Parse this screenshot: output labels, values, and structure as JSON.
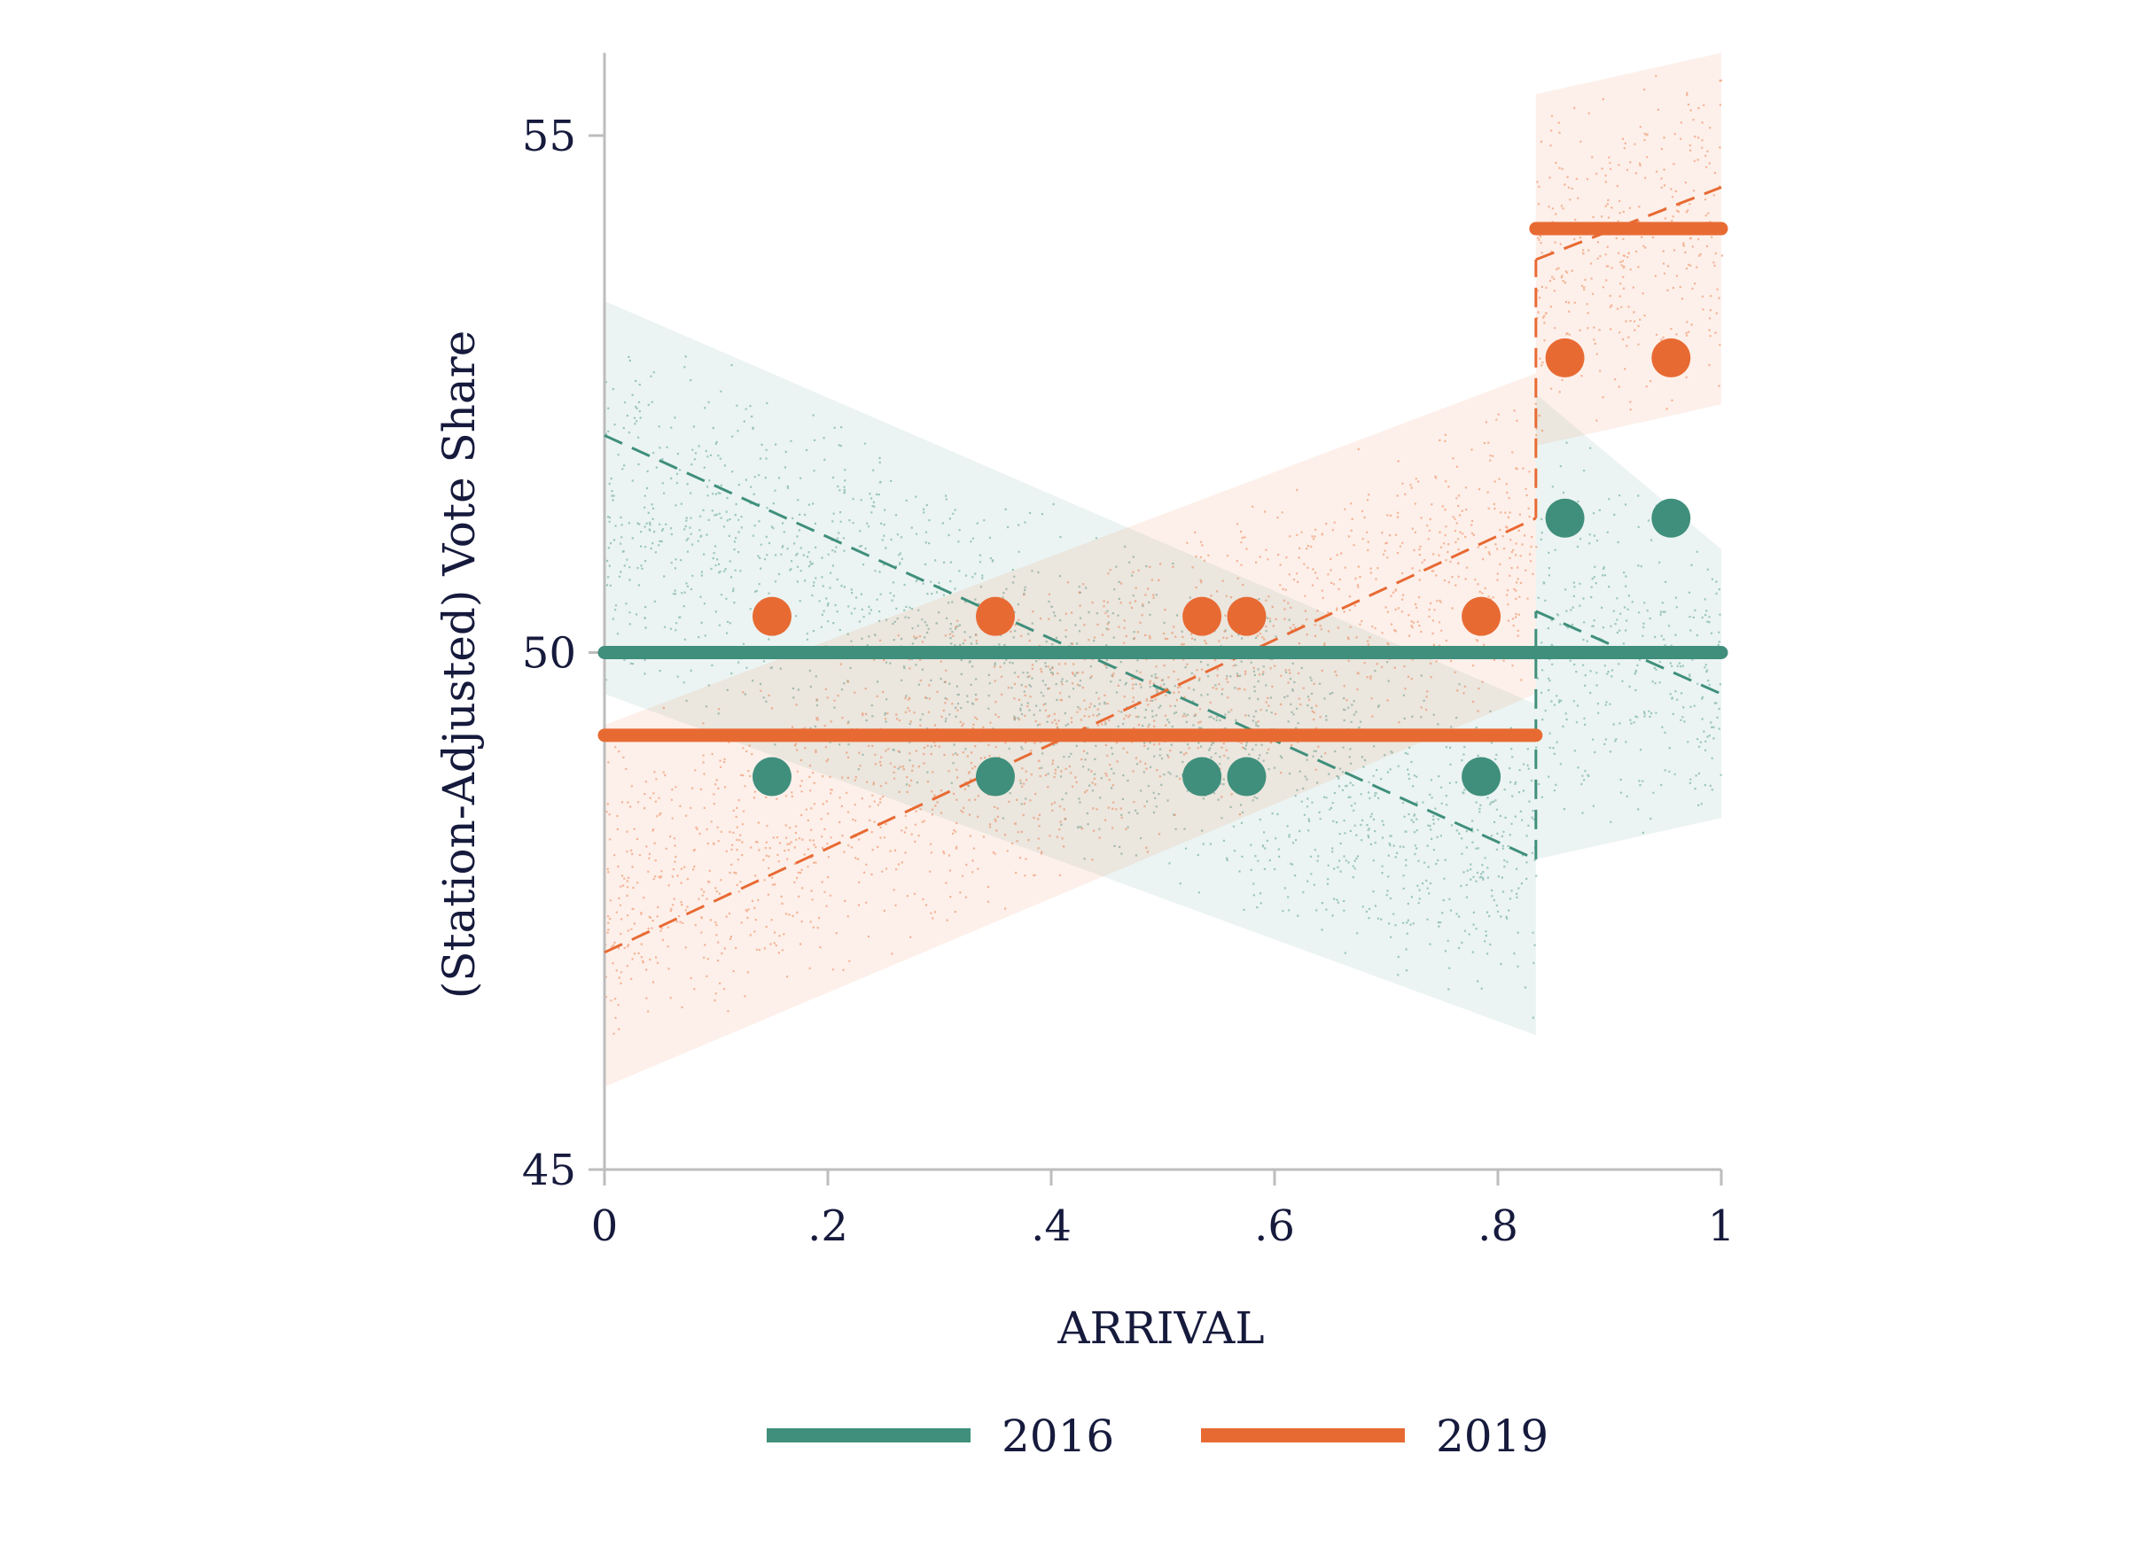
{
  "chart_data": {
    "type": "scatter",
    "xlabel": "ARRIVAL",
    "ylabel": "(Station-Adjusted) Vote Share",
    "xlim": [
      0,
      1
    ],
    "ylim": [
      45,
      55.8
    ],
    "x_ticks": [
      0,
      0.2,
      0.4,
      0.6,
      0.8,
      1
    ],
    "x_tick_labels": [
      "0",
      ".2",
      ".4",
      ".6",
      ".8",
      "1"
    ],
    "y_ticks": [
      45,
      50,
      55
    ],
    "y_tick_labels": [
      "45",
      "50",
      "55"
    ],
    "grid": false,
    "legend_position": "bottom",
    "colors": {
      "2016": "#3f8f7c",
      "2019": "#e86a33"
    },
    "series": [
      {
        "name": "2016",
        "color": "#3f8f7c",
        "mean_segments": [
          {
            "x0": 0,
            "x1": 1,
            "y": 50.0
          }
        ],
        "fit_segments": [
          {
            "x0": 0,
            "y0": 52.1,
            "x1": 0.834,
            "y1": 48.0
          },
          {
            "x0": 0.834,
            "y0": 50.4,
            "x1": 1,
            "y1": 49.6
          }
        ],
        "bin_points": [
          {
            "x": 0.15,
            "y": 48.8
          },
          {
            "x": 0.35,
            "y": 48.8
          },
          {
            "x": 0.535,
            "y": 48.8
          },
          {
            "x": 0.575,
            "y": 48.8
          },
          {
            "x": 0.785,
            "y": 48.8
          },
          {
            "x": 0.86,
            "y": 51.3
          },
          {
            "x": 0.955,
            "y": 51.3
          }
        ],
        "band_segments": [
          {
            "x0": 0,
            "x1": 0.834,
            "lo0": 49.6,
            "hi0": 53.4,
            "lo1": 46.3,
            "hi1": 49.5
          },
          {
            "x0": 0.834,
            "x1": 1,
            "lo0": 48.0,
            "hi0": 52.5,
            "lo1": 48.4,
            "hi1": 51.0
          }
        ]
      },
      {
        "name": "2019",
        "color": "#e86a33",
        "mean_segments": [
          {
            "x0": 0,
            "x1": 0.834,
            "y": 49.2
          },
          {
            "x0": 0.834,
            "x1": 1,
            "y": 54.1
          }
        ],
        "fit_segments": [
          {
            "x0": 0,
            "y0": 47.1,
            "x1": 0.834,
            "y1": 51.3
          },
          {
            "x0": 0.834,
            "y0": 53.8,
            "x1": 1,
            "y1": 54.5
          }
        ],
        "bin_points": [
          {
            "x": 0.15,
            "y": 50.35
          },
          {
            "x": 0.35,
            "y": 50.35
          },
          {
            "x": 0.535,
            "y": 50.35
          },
          {
            "x": 0.575,
            "y": 50.35
          },
          {
            "x": 0.785,
            "y": 50.35
          },
          {
            "x": 0.86,
            "y": 52.85
          },
          {
            "x": 0.955,
            "y": 52.85
          }
        ],
        "band_segments": [
          {
            "x0": 0,
            "x1": 0.834,
            "lo0": 45.8,
            "hi0": 49.3,
            "lo1": 49.6,
            "hi1": 52.7
          },
          {
            "x0": 0.834,
            "x1": 1,
            "lo0": 52.0,
            "hi0": 55.4,
            "lo1": 52.4,
            "hi1": 55.8
          }
        ]
      }
    ]
  }
}
